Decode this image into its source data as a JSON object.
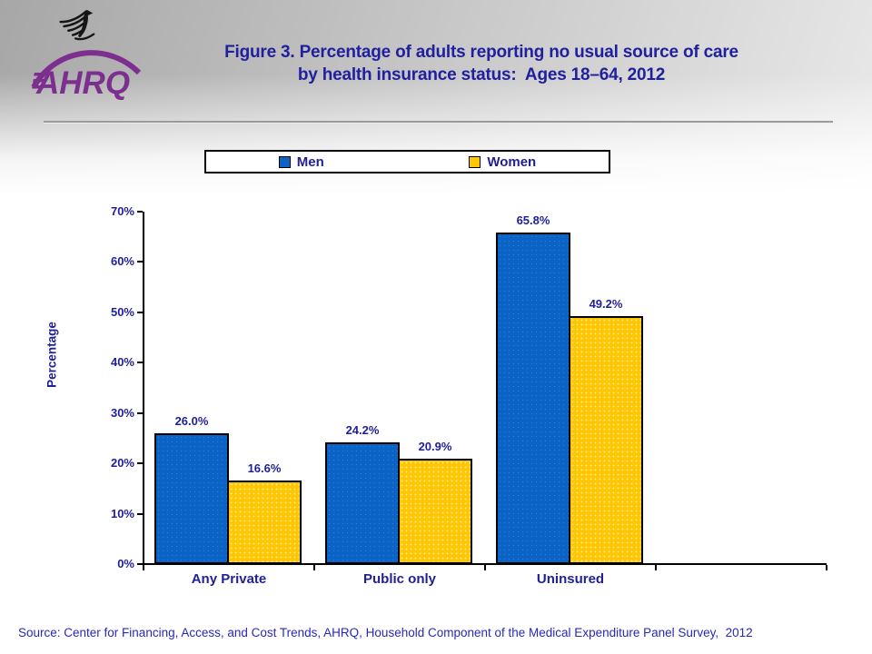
{
  "header": {
    "logo_text": "AHRQ",
    "title_line1": "Figure 3. Percentage of adults reporting no usual source of care",
    "title_line2": "by health insurance status:  Ages 18–64, 2012"
  },
  "legend": {
    "items": [
      {
        "label": "Men",
        "color": "#0B63C5"
      },
      {
        "label": "Women",
        "color": "#FFC702"
      }
    ]
  },
  "chart_data": {
    "type": "bar",
    "title": "Figure 3. Percentage of adults reporting no usual source of care by health insurance status: Ages 18–64, 2012",
    "categories": [
      "Any Private",
      "Public only",
      "Uninsured"
    ],
    "series": [
      {
        "name": "Men",
        "color": "#0B63C5",
        "values": [
          26.0,
          24.2,
          65.8
        ],
        "labels": [
          "26.0%",
          "24.2%",
          "65.8%"
        ]
      },
      {
        "name": "Women",
        "color": "#FFC702",
        "values": [
          16.6,
          20.9,
          49.2
        ],
        "labels": [
          "16.6%",
          "20.9%",
          "49.2%"
        ]
      }
    ],
    "xlabel": "",
    "ylabel": "Percentage",
    "ylim": [
      0,
      70
    ],
    "y_tick_labels": [
      "0%",
      "10%",
      "20%",
      "30%",
      "40%",
      "50%",
      "60%",
      "70%"
    ],
    "grid": false,
    "legend_position": "top"
  },
  "footer": {
    "source": "Source: Center for Financing, Access, and Cost Trends, AHRQ, Household Component of the Medical Expenditure Panel Survey,  2012"
  },
  "colors": {
    "accent_navy": "#1F1F99",
    "bar_men": "#0B63C5",
    "bar_women": "#FFC702",
    "logo_purple": "#7D2F8F",
    "source_blue": "#2828BC"
  }
}
